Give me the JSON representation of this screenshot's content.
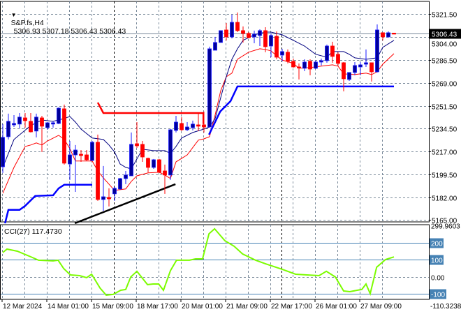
{
  "header": {
    "symbol": "S&P.fs,H4",
    "ohlc": "5306.93 5307.18 5306.43 5306.43"
  },
  "indicator": {
    "label": "CCI(27) 117.4730"
  },
  "colors": {
    "bull_body": "#000099",
    "bull_edge": "#1a1aff",
    "bear": "#ff0000",
    "ma_fast": "#000080",
    "ma_slow": "#ff0000",
    "support": "#0000ff",
    "resistance": "#ff0000",
    "trendline": "#000000",
    "cci": "#7cfc00",
    "cci_level": "#4682b4",
    "grid": "#7a8a9a",
    "price_line": "#7a8a9a"
  },
  "chart_data": [
    {
      "type": "candlestick",
      "title": "S&P.fs,H4",
      "ylim": [
        5163.5,
        5331.0
      ],
      "yticks": [
        {
          "value": 5321.5,
          "label": "5321.50"
        },
        {
          "value": 5304.0,
          "label": "5304.00"
        },
        {
          "value": 5286.5,
          "label": "5286.50"
        },
        {
          "value": 5269.0,
          "label": "5269.00"
        },
        {
          "value": 5251.5,
          "label": "5251.50"
        },
        {
          "value": 5234.5,
          "label": "5234.50"
        },
        {
          "value": 5217.0,
          "label": "5217.00"
        },
        {
          "value": 5199.5,
          "label": "5199.50"
        },
        {
          "value": 5182.0,
          "label": "5182.00"
        },
        {
          "value": 5165.0,
          "label": "5165.00"
        }
      ],
      "current_price": {
        "value": 5306.43,
        "label": "5306.43"
      },
      "xticks": [
        {
          "bar": 0,
          "label": "12 Mar 2024"
        },
        {
          "bar": 8,
          "label": "14 Mar 01:00"
        },
        {
          "bar": 16,
          "label": "15 Mar 09:00"
        },
        {
          "bar": 24,
          "label": "18 Mar 17:00"
        },
        {
          "bar": 32,
          "label": "20 Mar 01:00"
        },
        {
          "bar": 40,
          "label": "21 Mar 09:00"
        },
        {
          "bar": 48,
          "label": "22 Mar 17:00"
        },
        {
          "bar": 56,
          "label": "26 Mar 01:00"
        },
        {
          "bar": 64,
          "label": "27 Mar 09:00"
        }
      ],
      "week_separators": [
        20,
        50
      ],
      "ohlc": [
        [
          5205.4,
          5237.8,
          5200.7,
          5227.7
        ],
        [
          5228.2,
          5245.7,
          5226.1,
          5239.9
        ],
        [
          5237.2,
          5244.6,
          5235.6,
          5238.3
        ],
        [
          5237.8,
          5246.2,
          5234.6,
          5243.1
        ],
        [
          5242.5,
          5246.2,
          5235.1,
          5240.4
        ],
        [
          5239.9,
          5246.2,
          5231.4,
          5231.9
        ],
        [
          5232.5,
          5245.7,
          5227.7,
          5243.1
        ],
        [
          5242.5,
          5244.1,
          5216.6,
          5236.2
        ],
        [
          5235.1,
          5239.3,
          5233.5,
          5238.8
        ],
        [
          5237.8,
          5239.9,
          5235.1,
          5238.8
        ],
        [
          5238.3,
          5250.5,
          5237.8,
          5249.9
        ],
        [
          5249.4,
          5252.6,
          5207.0,
          5208.1
        ],
        [
          5207.5,
          5225.0,
          5195.4,
          5214.4
        ],
        [
          5214.4,
          5221.9,
          5186.3,
          5218.1
        ],
        [
          5214.9,
          5218.1,
          5209.1,
          5213.9
        ],
        [
          5214.4,
          5218.1,
          5209.7,
          5210.7
        ],
        [
          5210.2,
          5225.0,
          5209.7,
          5224.0
        ],
        [
          5224.0,
          5229.8,
          5179.5,
          5180.5
        ],
        [
          5180.5,
          5206.0,
          5172.0,
          5182.6
        ],
        [
          5182.1,
          5189.0,
          5175.2,
          5181.0
        ],
        [
          5184.8,
          5190.1,
          5179.5,
          5189.0
        ],
        [
          5188.5,
          5196.9,
          5187.9,
          5196.4
        ],
        [
          5196.4,
          5202.2,
          5192.2,
          5199.1
        ],
        [
          5198.5,
          5231.4,
          5198.5,
          5222.4
        ],
        [
          5222.9,
          5239.3,
          5219.7,
          5221.3
        ],
        [
          5222.4,
          5225.0,
          5209.1,
          5212.8
        ],
        [
          5211.8,
          5212.3,
          5201.2,
          5204.9
        ],
        [
          5204.9,
          5211.3,
          5203.8,
          5210.7
        ],
        [
          5210.7,
          5211.3,
          5200.7,
          5201.2
        ],
        [
          5202.2,
          5207.0,
          5184.8,
          5199.1
        ],
        [
          5199.1,
          5234.0,
          5195.4,
          5233.5
        ],
        [
          5233.0,
          5244.1,
          5231.4,
          5239.3
        ],
        [
          5238.3,
          5243.1,
          5232.5,
          5233.5
        ],
        [
          5233.5,
          5239.3,
          5232.5,
          5235.6
        ],
        [
          5235.1,
          5240.4,
          5233.0,
          5237.8
        ],
        [
          5237.2,
          5245.7,
          5232.5,
          5236.2
        ],
        [
          5237.2,
          5247.3,
          5231.4,
          5235.6
        ],
        [
          5235.6,
          5296.6,
          5235.1,
          5295.0
        ],
        [
          5293.9,
          5304.0,
          5293.9,
          5299.8
        ],
        [
          5299.8,
          5308.8,
          5299.8,
          5308.8
        ],
        [
          5309.3,
          5314.6,
          5301.4,
          5304.0
        ],
        [
          5304.0,
          5321.0,
          5302.9,
          5315.1
        ],
        [
          5315.1,
          5322.6,
          5307.7,
          5308.8
        ],
        [
          5308.8,
          5312.0,
          5299.8,
          5306.7
        ],
        [
          5306.7,
          5307.7,
          5302.9,
          5303.5
        ],
        [
          5304.0,
          5308.8,
          5299.2,
          5306.1
        ],
        [
          5305.1,
          5309.8,
          5297.1,
          5308.8
        ],
        [
          5308.8,
          5311.4,
          5292.4,
          5296.6
        ],
        [
          5297.1,
          5306.7,
          5288.6,
          5305.1
        ],
        [
          5304.5,
          5308.2,
          5287.0,
          5288.6
        ],
        [
          5290.2,
          5295.0,
          5285.5,
          5292.9
        ],
        [
          5292.4,
          5294.5,
          5283.9,
          5285.5
        ],
        [
          5285.5,
          5287.6,
          5280.7,
          5281.2
        ],
        [
          5281.2,
          5283.9,
          5271.7,
          5280.7
        ],
        [
          5280.2,
          5287.0,
          5278.0,
          5284.9
        ],
        [
          5285.5,
          5287.0,
          5274.9,
          5279.6
        ],
        [
          5280.2,
          5286.0,
          5279.6,
          5284.9
        ],
        [
          5284.9,
          5287.6,
          5282.3,
          5286.0
        ],
        [
          5286.0,
          5298.2,
          5284.4,
          5297.1
        ],
        [
          5297.1,
          5300.3,
          5284.4,
          5289.2
        ],
        [
          5290.8,
          5292.4,
          5282.3,
          5283.9
        ],
        [
          5284.4,
          5284.9,
          5262.7,
          5272.2
        ],
        [
          5271.7,
          5277.0,
          5270.6,
          5277.0
        ],
        [
          5277.0,
          5284.9,
          5274.9,
          5282.3
        ],
        [
          5281.2,
          5284.9,
          5274.9,
          5282.8
        ],
        [
          5283.3,
          5294.5,
          5281.2,
          5284.4
        ],
        [
          5284.4,
          5284.4,
          5270.1,
          5277.5
        ],
        [
          5277.5,
          5313.5,
          5277.0,
          5309.3
        ],
        [
          5307.2,
          5307.2,
          5301.4,
          5304.0
        ],
        [
          5304.0,
          5308.2,
          5303.5,
          5307.2
        ],
        [
          5306.93,
          5307.18,
          5306.43,
          5306.43
        ]
      ],
      "ma_fast": [
        [
          0,
          5204.9
        ],
        [
          2,
          5226.1
        ],
        [
          5,
          5236.7
        ],
        [
          7,
          5240.9
        ],
        [
          9,
          5239.9
        ],
        [
          11,
          5242.0
        ],
        [
          12,
          5243.6
        ],
        [
          13,
          5239.3
        ],
        [
          14,
          5234.0
        ],
        [
          16,
          5227.2
        ],
        [
          18,
          5226.1
        ],
        [
          19,
          5221.9
        ],
        [
          20,
          5216.6
        ],
        [
          21,
          5207.5
        ],
        [
          22,
          5204.9
        ],
        [
          23,
          5203.8
        ],
        [
          24,
          5211.3
        ],
        [
          25,
          5218.7
        ],
        [
          27,
          5217.6
        ],
        [
          29,
          5217.6
        ],
        [
          30,
          5215.5
        ],
        [
          31,
          5220.8
        ],
        [
          32,
          5227.2
        ],
        [
          34,
          5231.4
        ],
        [
          36,
          5234.0
        ],
        [
          37,
          5235.6
        ],
        [
          38,
          5242.0
        ],
        [
          39,
          5257.9
        ],
        [
          40,
          5273.8
        ],
        [
          41,
          5287.0
        ],
        [
          42,
          5295.0
        ],
        [
          43,
          5301.4
        ],
        [
          45,
          5305.6
        ],
        [
          47,
          5307.7
        ],
        [
          48,
          5307.7
        ],
        [
          50,
          5305.6
        ],
        [
          52,
          5301.4
        ],
        [
          54,
          5297.1
        ],
        [
          56,
          5290.8
        ],
        [
          58,
          5288.6
        ],
        [
          59,
          5292.9
        ],
        [
          61,
          5292.9
        ],
        [
          62,
          5290.8
        ],
        [
          63,
          5288.1
        ],
        [
          65,
          5287.0
        ],
        [
          66,
          5287.6
        ],
        [
          67,
          5288.1
        ],
        [
          68,
          5296.1
        ],
        [
          70,
          5301.4
        ]
      ],
      "ma_slow": [
        [
          0,
          5185.3
        ],
        [
          2,
          5204.9
        ],
        [
          4,
          5220.8
        ],
        [
          5,
          5221.9
        ],
        [
          6,
          5223.5
        ],
        [
          7,
          5221.9
        ],
        [
          8,
          5225.0
        ],
        [
          10,
          5229.3
        ],
        [
          11,
          5226.1
        ],
        [
          12,
          5219.2
        ],
        [
          13,
          5209.7
        ],
        [
          16,
          5209.7
        ],
        [
          17,
          5202.2
        ],
        [
          18,
          5196.9
        ],
        [
          19,
          5192.2
        ],
        [
          20,
          5187.4
        ],
        [
          22,
          5188.5
        ],
        [
          23,
          5194.3
        ],
        [
          24,
          5198.5
        ],
        [
          26,
          5200.7
        ],
        [
          28,
          5201.2
        ],
        [
          29,
          5199.1
        ],
        [
          30,
          5196.4
        ],
        [
          31,
          5209.1
        ],
        [
          33,
          5214.4
        ],
        [
          35,
          5225.6
        ],
        [
          36,
          5226.6
        ],
        [
          37,
          5228.2
        ],
        [
          38,
          5244.7
        ],
        [
          39,
          5263.2
        ],
        [
          40,
          5273.8
        ],
        [
          41,
          5276.5
        ],
        [
          42,
          5287.0
        ],
        [
          44,
          5292.4
        ],
        [
          46,
          5295.0
        ],
        [
          47,
          5294.5
        ],
        [
          48,
          5293.4
        ],
        [
          49,
          5289.7
        ],
        [
          50,
          5286.5
        ],
        [
          52,
          5283.9
        ],
        [
          53,
          5280.2
        ],
        [
          55,
          5280.7
        ],
        [
          57,
          5281.8
        ],
        [
          59,
          5282.8
        ],
        [
          60,
          5281.8
        ],
        [
          61,
          5275.9
        ],
        [
          63,
          5275.4
        ],
        [
          65,
          5276.5
        ],
        [
          66,
          5275.4
        ],
        [
          67,
          5277.5
        ],
        [
          68,
          5283.3
        ],
        [
          70,
          5291.3
        ]
      ],
      "support_1": [
        [
          0.4,
          5162.5
        ],
        [
          1,
          5172.6
        ],
        [
          3,
          5172.6
        ],
        [
          4,
          5175.7
        ],
        [
          5.8,
          5183.2
        ],
        [
          9,
          5183.7
        ],
        [
          10,
          5189.0
        ],
        [
          11,
          5191.7
        ],
        [
          16,
          5191.7
        ]
      ],
      "resistance": [
        [
          17,
          5254.2
        ],
        [
          18,
          5246.2
        ],
        [
          35.9,
          5246.2
        ],
        [
          35.9,
          5237.8
        ]
      ],
      "support_2": [
        [
          36.9,
          5229.8
        ],
        [
          38.9,
          5247.3
        ],
        [
          40.75,
          5255.2
        ],
        [
          42,
          5266.4
        ],
        [
          70,
          5266.4
        ]
      ],
      "trendline": [
        [
          12.9,
          5162.5
        ],
        [
          30.9,
          5192.2
        ]
      ]
    },
    {
      "type": "line",
      "title": "CCI(27) 117.4730",
      "ylim": [
        -131,
        306
      ],
      "max_label": "299.9603",
      "min_label": "-110.3238",
      "levels": [
        {
          "value": 200,
          "label": "200",
          "style": "solid",
          "boxed": true
        },
        {
          "value": 100,
          "label": "100",
          "style": "solid",
          "boxed": true
        },
        {
          "value": 0,
          "label": "0.00",
          "style": "dashed",
          "boxed": false
        },
        {
          "value": -100,
          "label": "-100",
          "style": "solid",
          "boxed": true
        }
      ],
      "max_value": 299.9603,
      "points": [
        [
          0,
          143
        ],
        [
          0.75,
          163
        ],
        [
          2.6,
          151
        ],
        [
          5,
          118
        ],
        [
          6.4,
          98
        ],
        [
          9,
          94
        ],
        [
          9.9,
          98
        ],
        [
          10.9,
          49
        ],
        [
          12.1,
          12
        ],
        [
          13.75,
          8
        ],
        [
          15,
          -4
        ],
        [
          15.9,
          16
        ],
        [
          17.4,
          -65
        ],
        [
          18.5,
          -106
        ],
        [
          19.75,
          -102
        ],
        [
          21.1,
          -78
        ],
        [
          22,
          -73
        ],
        [
          22.9,
          0
        ],
        [
          24,
          33
        ],
        [
          25.9,
          -45
        ],
        [
          26.9,
          -41
        ],
        [
          27.9,
          -41
        ],
        [
          28.75,
          -78
        ],
        [
          30,
          37
        ],
        [
          31.1,
          98
        ],
        [
          33.4,
          98
        ],
        [
          34.5,
          106
        ],
        [
          35.75,
          106
        ],
        [
          36.9,
          253
        ],
        [
          37.9,
          282
        ],
        [
          39.75,
          212
        ],
        [
          41.4,
          180
        ],
        [
          42.9,
          135
        ],
        [
          45.25,
          98
        ],
        [
          47.4,
          73
        ],
        [
          50,
          45
        ],
        [
          52.4,
          16
        ],
        [
          54.4,
          12
        ],
        [
          56.6,
          8
        ],
        [
          57.9,
          33
        ],
        [
          59.5,
          0
        ],
        [
          61,
          -82
        ],
        [
          62.1,
          -86
        ],
        [
          63.4,
          -78
        ],
        [
          64.25,
          -73
        ],
        [
          65,
          -41
        ],
        [
          65.75,
          -98
        ],
        [
          66.9,
          57
        ],
        [
          68.5,
          102
        ],
        [
          70,
          117.473
        ]
      ]
    }
  ]
}
